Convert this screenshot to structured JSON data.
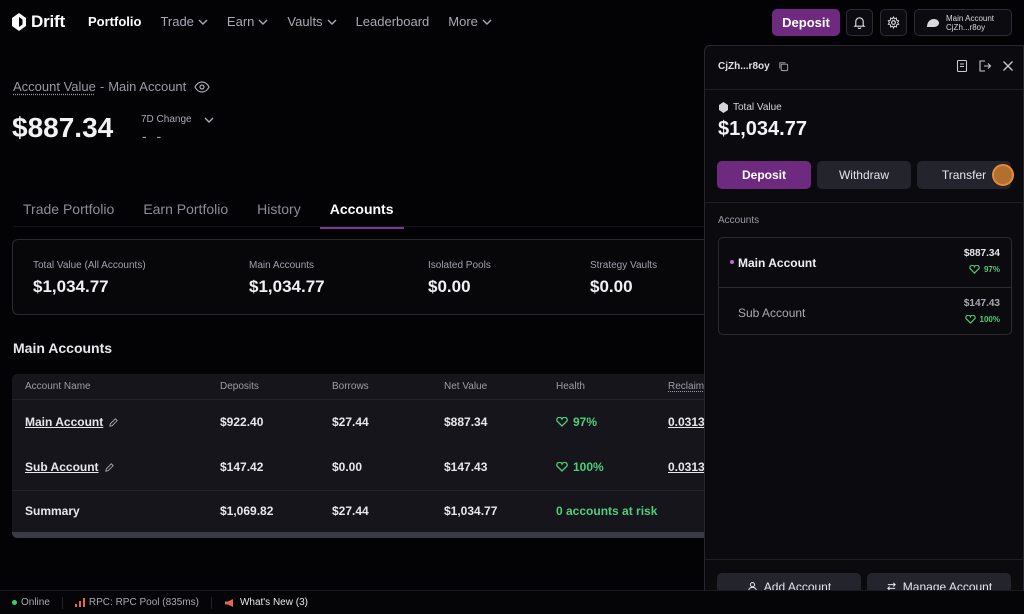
{
  "brand": {
    "name": "Drift"
  },
  "nav": [
    {
      "label": "Portfolio",
      "active": true,
      "dropdown": false
    },
    {
      "label": "Trade",
      "active": false,
      "dropdown": true
    },
    {
      "label": "Earn",
      "active": false,
      "dropdown": true
    },
    {
      "label": "Vaults",
      "active": false,
      "dropdown": true
    },
    {
      "label": "Leaderboard",
      "active": false,
      "dropdown": false
    },
    {
      "label": "More",
      "active": false,
      "dropdown": true
    }
  ],
  "topbar": {
    "deposit_label": "Deposit",
    "wallet_name": "Main Account",
    "wallet_addr": "CjZh...r8oy"
  },
  "account": {
    "label_link": "Account Value",
    "label_sep": "-",
    "label_name": "Main Account",
    "value": "$887.34",
    "change_label": "7D Change",
    "change_value": "- -"
  },
  "tabs": [
    "Trade Portfolio",
    "Earn Portfolio",
    "History",
    "Accounts"
  ],
  "active_tab": "Accounts",
  "stats": [
    {
      "label": "Total Value (All Accounts)",
      "value": "$1,034.77"
    },
    {
      "label": "Main Accounts",
      "value": "$1,034.77"
    },
    {
      "label": "Isolated Pools",
      "value": "$0.00"
    },
    {
      "label": "Strategy Vaults",
      "value": "$0.00"
    }
  ],
  "section_title": "Main Accounts",
  "table": {
    "headers": [
      "Account Name",
      "Deposits",
      "Borrows",
      "Net Value",
      "Health",
      "Reclaim"
    ],
    "rows": [
      {
        "name": "Main Account",
        "deposits": "$922.40",
        "borrows": "$27.44",
        "net": "$887.34",
        "health": "97%",
        "reclaim": "0.0313"
      },
      {
        "name": "Sub Account",
        "deposits": "$147.42",
        "borrows": "$0.00",
        "net": "$147.43",
        "health": "100%",
        "reclaim": "0.0313"
      }
    ],
    "summary": {
      "label": "Summary",
      "deposits": "$1,069.82",
      "borrows": "$27.44",
      "net": "$1,034.77",
      "risk": "0 accounts at risk"
    }
  },
  "panel": {
    "address": "CjZh...r8oy",
    "total_label": "Total Value",
    "total_value": "$1,034.77",
    "buttons": {
      "deposit": "Deposit",
      "withdraw": "Withdraw",
      "transfer": "Transfer"
    },
    "accounts_label": "Accounts",
    "accounts": [
      {
        "name": "Main Account",
        "amount": "$887.34",
        "health": "97%",
        "selected": true
      },
      {
        "name": "Sub Account",
        "amount": "$147.43",
        "health": "100%",
        "selected": false
      }
    ],
    "add_account": "Add Account",
    "manage_account": "Manage Account"
  },
  "status": {
    "online": "Online",
    "rpc": "RPC: RPC Pool (835ms)",
    "whats_new": "What's New (3)"
  },
  "colors": {
    "accent": "#6e2a7e",
    "health_green": "#4fce7a",
    "background": "#030305"
  }
}
